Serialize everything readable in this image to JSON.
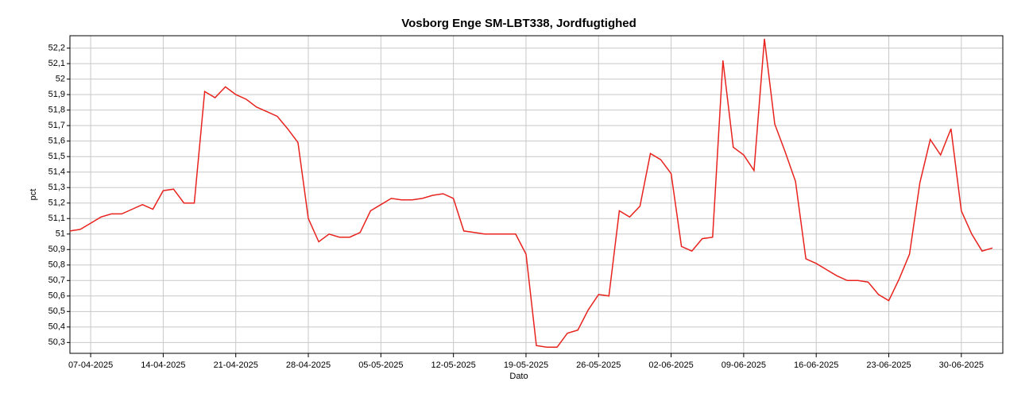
{
  "chart_data": {
    "type": "line",
    "title": "Vosborg Enge SM-LBT338, Jordfugtighed",
    "xlabel": "Dato",
    "ylabel": "pct",
    "grid": true,
    "x": [
      "2025-04-05",
      "2025-04-06",
      "2025-04-07",
      "2025-04-08",
      "2025-04-09",
      "2025-04-10",
      "2025-04-11",
      "2025-04-12",
      "2025-04-13",
      "2025-04-14",
      "2025-04-15",
      "2025-04-16",
      "2025-04-17",
      "2025-04-18",
      "2025-04-19",
      "2025-04-20",
      "2025-04-21",
      "2025-04-22",
      "2025-04-23",
      "2025-04-24",
      "2025-04-25",
      "2025-04-26",
      "2025-04-27",
      "2025-04-28",
      "2025-04-29",
      "2025-04-30",
      "2025-05-01",
      "2025-05-02",
      "2025-05-03",
      "2025-05-04",
      "2025-05-05",
      "2025-05-06",
      "2025-05-07",
      "2025-05-08",
      "2025-05-09",
      "2025-05-10",
      "2025-05-11",
      "2025-05-12",
      "2025-05-13",
      "2025-05-14",
      "2025-05-15",
      "2025-05-16",
      "2025-05-17",
      "2025-05-18",
      "2025-05-19",
      "2025-05-20",
      "2025-05-21",
      "2025-05-22",
      "2025-05-23",
      "2025-05-24",
      "2025-05-25",
      "2025-05-26",
      "2025-05-27",
      "2025-05-28",
      "2025-05-29",
      "2025-05-30",
      "2025-05-31",
      "2025-06-01",
      "2025-06-02",
      "2025-06-03",
      "2025-06-04",
      "2025-06-05",
      "2025-06-06",
      "2025-06-07",
      "2025-06-08",
      "2025-06-09",
      "2025-06-10",
      "2025-06-11",
      "2025-06-12",
      "2025-06-13",
      "2025-06-14",
      "2025-06-15",
      "2025-06-16",
      "2025-06-17",
      "2025-06-18",
      "2025-06-19",
      "2025-06-20",
      "2025-06-21",
      "2025-06-22",
      "2025-06-23",
      "2025-06-24",
      "2025-06-25",
      "2025-06-26",
      "2025-06-27",
      "2025-06-28",
      "2025-06-29",
      "2025-06-30",
      "2025-07-01",
      "2025-07-02",
      "2025-07-03"
    ],
    "series": [
      {
        "name": "Jordfugtighed",
        "color": "#e8231e",
        "values": [
          51.02,
          51.03,
          51.07,
          51.11,
          51.13,
          51.13,
          51.16,
          51.19,
          51.16,
          51.28,
          51.29,
          51.2,
          51.2,
          51.92,
          51.88,
          51.95,
          51.9,
          51.87,
          51.82,
          51.79,
          51.76,
          51.68,
          51.59,
          51.1,
          50.95,
          51.0,
          50.98,
          50.98,
          51.01,
          51.15,
          51.19,
          51.23,
          51.22,
          51.22,
          51.23,
          51.25,
          51.26,
          51.23,
          51.02,
          51.01,
          51.0,
          51.0,
          51.0,
          51.0,
          50.87,
          50.28,
          50.27,
          50.27,
          50.36,
          50.38,
          50.51,
          50.61,
          50.6,
          51.15,
          51.11,
          51.18,
          51.52,
          51.48,
          51.39,
          50.92,
          50.89,
          50.97,
          50.98,
          52.12,
          51.56,
          51.51,
          51.41,
          52.26,
          51.71,
          51.53,
          51.34,
          50.84,
          50.81,
          50.77,
          50.73,
          50.7,
          50.7,
          50.69,
          50.61,
          50.57,
          50.71,
          50.87,
          51.33,
          51.61,
          51.51,
          51.68,
          51.15,
          51.0,
          50.89,
          50.91
        ]
      }
    ],
    "xlim": [
      "2025-04-05",
      "2025-07-04"
    ],
    "xticks": [
      {
        "value": "2025-04-07",
        "label": "07-04-2025"
      },
      {
        "value": "2025-04-14",
        "label": "14-04-2025"
      },
      {
        "value": "2025-04-21",
        "label": "21-04-2025"
      },
      {
        "value": "2025-04-28",
        "label": "28-04-2025"
      },
      {
        "value": "2025-05-05",
        "label": "05-05-2025"
      },
      {
        "value": "2025-05-12",
        "label": "12-05-2025"
      },
      {
        "value": "2025-05-19",
        "label": "19-05-2025"
      },
      {
        "value": "2025-05-26",
        "label": "26-05-2025"
      },
      {
        "value": "2025-06-02",
        "label": "02-06-2025"
      },
      {
        "value": "2025-06-09",
        "label": "09-06-2025"
      },
      {
        "value": "2025-06-16",
        "label": "16-06-2025"
      },
      {
        "value": "2025-06-23",
        "label": "23-06-2025"
      },
      {
        "value": "2025-06-30",
        "label": "30-06-2025"
      }
    ],
    "ylim": [
      50.23,
      52.28
    ],
    "yticks": [
      {
        "value": 50.3,
        "label": "50,3"
      },
      {
        "value": 50.4,
        "label": "50,4"
      },
      {
        "value": 50.5,
        "label": "50,5"
      },
      {
        "value": 50.6,
        "label": "50,6"
      },
      {
        "value": 50.7,
        "label": "50,7"
      },
      {
        "value": 50.8,
        "label": "50,8"
      },
      {
        "value": 50.9,
        "label": "50,9"
      },
      51,
      {
        "value": 51.1,
        "label": "51,1"
      },
      {
        "value": 51.2,
        "label": "51,2"
      },
      {
        "value": 51.3,
        "label": "51,3"
      },
      {
        "value": 51.4,
        "label": "51,4"
      },
      {
        "value": 51.5,
        "label": "51,5"
      },
      {
        "value": 51.6,
        "label": "51,6"
      },
      {
        "value": 51.7,
        "label": "51,7"
      },
      {
        "value": 51.8,
        "label": "51,8"
      },
      {
        "value": 51.9,
        "label": "51,9"
      },
      52,
      {
        "value": 52.1,
        "label": "52,1"
      },
      {
        "value": 52.2,
        "label": "52,2"
      }
    ]
  }
}
